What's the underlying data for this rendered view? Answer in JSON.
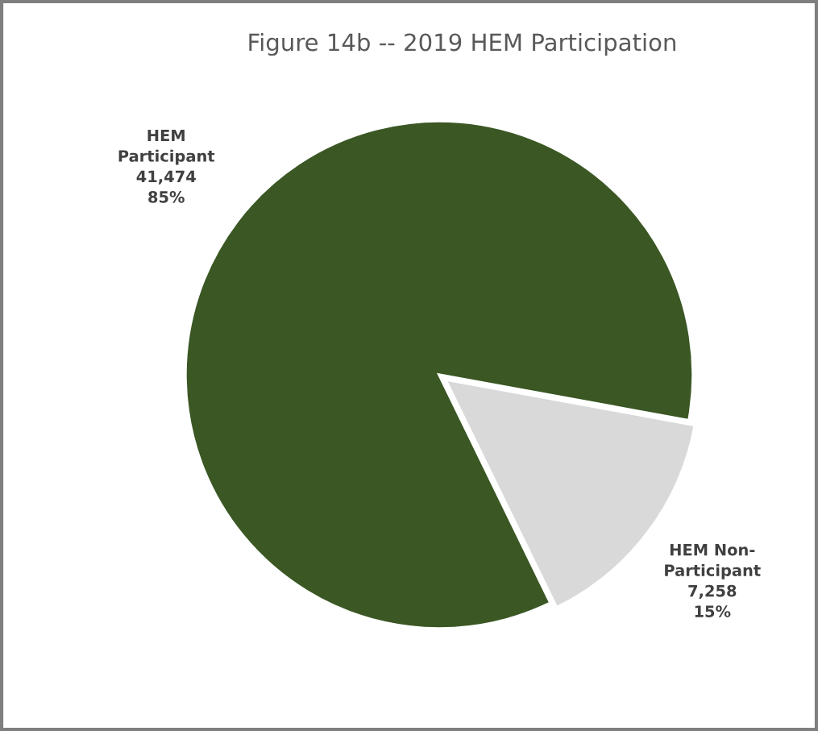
{
  "chart_data": {
    "type": "pie",
    "title": "Figure 14b -- 2019 HEM Participation",
    "categories": [
      "HEM\nParticipant",
      "HEM Non-\nParticipant"
    ],
    "values": [
      41474,
      7258
    ],
    "value_labels": [
      "41,474\n85%",
      "7,258\n15%"
    ],
    "colors": [
      "#3a5724",
      "#d9d9d9"
    ],
    "legend": false
  }
}
